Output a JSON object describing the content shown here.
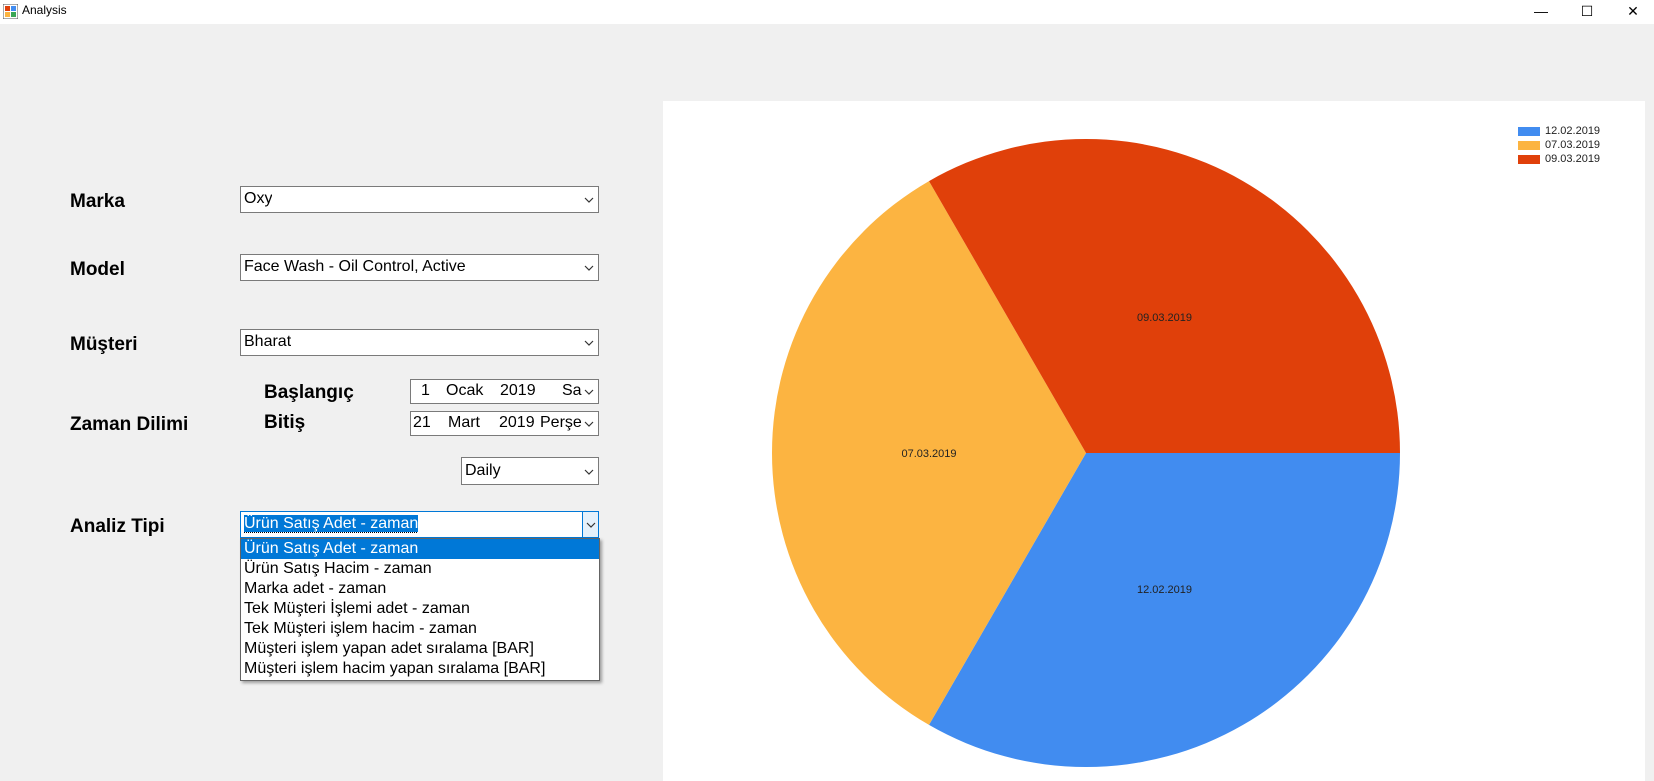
{
  "window": {
    "title": "Analysis",
    "minimize": "—",
    "maximize": "☐",
    "close": "✕"
  },
  "form": {
    "marka_label": "Marka",
    "marka_value": "Oxy",
    "model_label": "Model",
    "model_value": "Face Wash - Oil Control, Active",
    "musteri_label": "Müşteri",
    "musteri_value": "Bharat",
    "zaman_label": "Zaman Dilimi",
    "baslangic_label": "Başlangıç",
    "baslangic_date": {
      "day": "1",
      "month": "Ocak",
      "year": "2019",
      "weekday": "Sa"
    },
    "bitis_label": "Bitiş",
    "bitis_date": {
      "day": "21",
      "month": "Mart",
      "year": "2019",
      "weekday": "Perşe"
    },
    "period_value": "Daily",
    "analiz_label": "Analiz Tipi",
    "analiz_value": "Ürün Satış Adet - zaman",
    "analiz_options": [
      "Ürün Satış Adet - zaman",
      "Ürün Satış Hacim - zaman",
      "Marka adet - zaman",
      "Tek Müşteri İşlemi adet - zaman",
      "Tek Müşteri işlem hacim - zaman",
      "Müşteri işlem yapan adet sıralama [BAR]",
      "Müşteri işlem hacim yapan sıralama [BAR]"
    ],
    "analiz_selected_index": 0
  },
  "chart_data": {
    "type": "pie",
    "categories": [
      "12.02.2019",
      "07.03.2019",
      "09.03.2019"
    ],
    "values": [
      1,
      1,
      1
    ],
    "colors": [
      "#418cf0",
      "#fcb441",
      "#e0400a"
    ],
    "start_angle_deg": 0,
    "legend_position": "top-right"
  }
}
